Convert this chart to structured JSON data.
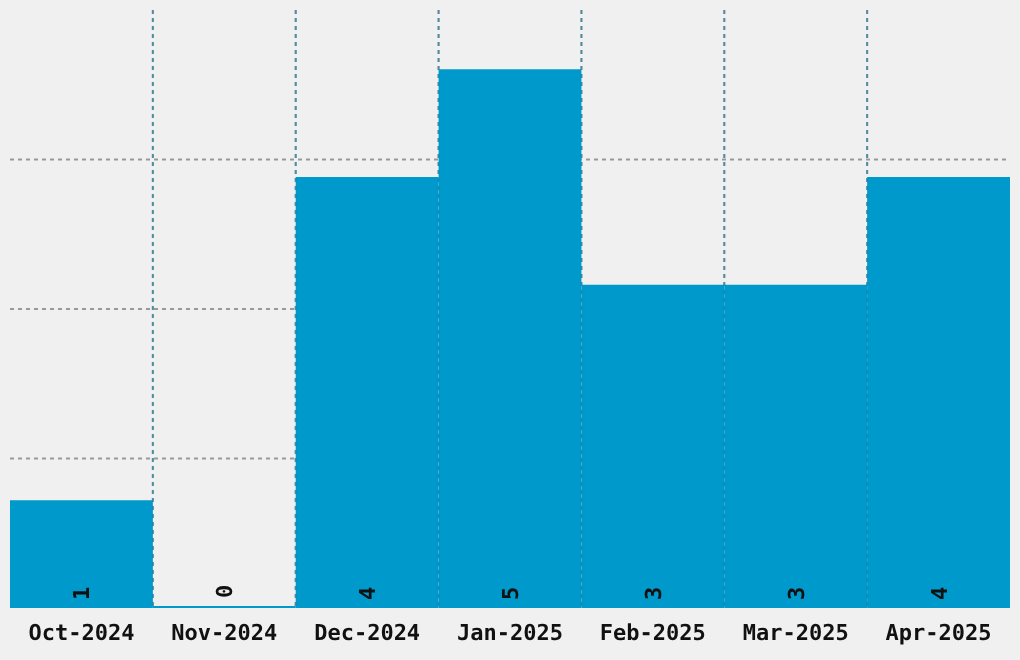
{
  "chart_data": {
    "type": "bar",
    "categories": [
      "Oct-2024",
      "Nov-2024",
      "Dec-2024",
      "Jan-2025",
      "Feb-2025",
      "Mar-2025",
      "Apr-2025"
    ],
    "values": [
      1,
      0,
      4,
      5,
      3,
      3,
      4
    ],
    "color": "#0099cc",
    "data_labels": true,
    "grid": true,
    "tick_labels": "x",
    "ylim": [
      0,
      5.55
    ],
    "yticks": [
      {
        "value": 1.3875,
        "label": null
      },
      {
        "value": 2.775,
        "label": null
      },
      {
        "value": 4.1625,
        "label": null
      }
    ]
  }
}
